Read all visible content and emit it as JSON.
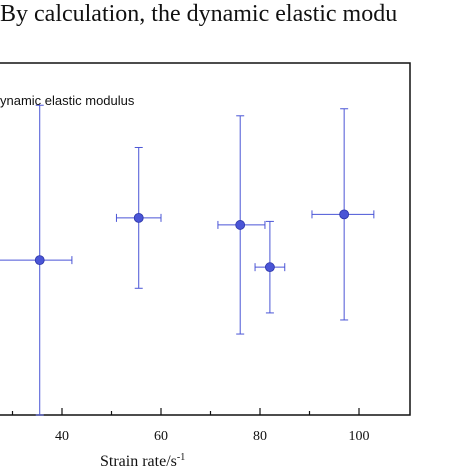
{
  "caption": "By calculation, the dynamic elastic modu",
  "chart_data": {
    "type": "scatter",
    "title": "",
    "xlabel": "Strain rate/s",
    "xlabel_sup": "-1",
    "ylabel": "",
    "xlim": [
      24,
      410
    ],
    "ylim": [
      0,
      1
    ],
    "x_ticks": [
      40,
      60,
      80,
      100
    ],
    "legend": {
      "label": "ynamic elastic modulus",
      "placement": "top-left"
    },
    "series": [
      {
        "name": "ynamic elastic modulus",
        "color": "#4a55d6",
        "points": [
          {
            "x": 35.5,
            "y": 0.44,
            "x_err_low": 10.5,
            "x_err_high": 6.5,
            "y_err_low": 0.44,
            "y_err_high": 0.44
          },
          {
            "x": 55.5,
            "y": 0.56,
            "x_err_low": 4.5,
            "x_err_high": 4.5,
            "y_err_low": 0.2,
            "y_err_high": 0.2
          },
          {
            "x": 76.0,
            "y": 0.54,
            "x_err_low": 4.5,
            "x_err_high": 5.0,
            "y_err_low": 0.31,
            "y_err_high": 0.31
          },
          {
            "x": 82.0,
            "y": 0.42,
            "x_err_low": 3.0,
            "x_err_high": 3.0,
            "y_err_low": 0.13,
            "y_err_high": 0.13
          },
          {
            "x": 97.0,
            "y": 0.57,
            "x_err_low": 6.5,
            "x_err_high": 6.0,
            "y_err_low": 0.3,
            "y_err_high": 0.3
          }
        ]
      }
    ]
  }
}
